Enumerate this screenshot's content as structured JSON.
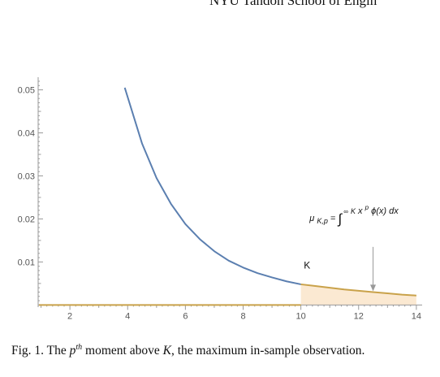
{
  "header": {
    "text": "NYU Tandon School of Engin"
  },
  "chart_data": {
    "type": "line",
    "title": "",
    "xlabel": "",
    "ylabel": "",
    "xlim": [
      0.9,
      14.2
    ],
    "ylim": [
      -0.0005,
      0.052
    ],
    "x_ticks": [
      2,
      4,
      6,
      8,
      10,
      12,
      14
    ],
    "y_ticks": [
      0.01,
      0.02,
      0.03,
      0.04,
      0.05
    ],
    "x_tick_labels": [
      "2",
      "4",
      "6",
      "8",
      "10",
      "12",
      "14"
    ],
    "y_tick_labels": [
      "0.01",
      "0.02",
      "0.03",
      "0.04",
      "0.05"
    ],
    "grid": false,
    "series": [
      {
        "kind": "density-curve",
        "color": "#5b7fb0",
        "x": [
          3.9,
          4.5,
          5,
          5.5,
          6,
          6.5,
          7,
          7.5,
          8,
          8.5,
          9,
          9.5,
          10
        ],
        "y": [
          0.0505,
          0.0375,
          0.0295,
          0.0235,
          0.0188,
          0.0153,
          0.0125,
          0.0103,
          0.0087,
          0.0074,
          0.0064,
          0.0055,
          0.0048
        ]
      },
      {
        "kind": "tail-curve",
        "color": "#c9a24a",
        "x": [
          10,
          10.5,
          11,
          11.5,
          12,
          12.5,
          13,
          13.5,
          14
        ],
        "y": [
          0.0048,
          0.0044,
          0.004,
          0.0036,
          0.0033,
          0.003,
          0.0027,
          0.0024,
          0.0022
        ]
      }
    ],
    "baseline": {
      "color": "#c9a24a",
      "x": [
        0.9,
        10
      ],
      "y": 0
    },
    "shaded_area": {
      "from_x": 10,
      "to_x": 14,
      "color": "#fbe9d2"
    },
    "annotations": {
      "k_label": {
        "text": "K",
        "x": 10.1,
        "y": 0.0085
      },
      "formula": {
        "mu": "μ",
        "mu_sub": "K,p",
        "equals": " = ",
        "integral": "∫",
        "upper": "∞",
        "lower": "K",
        "x": "x",
        "p": "p",
        "rest": " ϕ(x) dx",
        "anchor_x": 10.3,
        "anchor_y": 0.0195
      },
      "arrow": {
        "from": [
          12.5,
          0.0135
        ],
        "to": [
          12.5,
          0.0032
        ]
      }
    }
  },
  "caption": {
    "fig": "Fig. 1.",
    "pre": "  The ",
    "p": "p",
    "th": "th",
    "mid": " moment above ",
    "K": "K",
    "post": ", the maximum in-sample observation."
  }
}
